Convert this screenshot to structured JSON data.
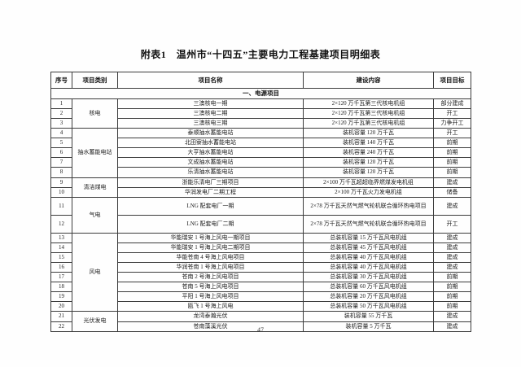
{
  "page": {
    "title": "附表1　温州市“十四五”主要电力工程基建项目明细表",
    "page_number": "47"
  },
  "table": {
    "headers": [
      "序号",
      "项目类别",
      "项目名称",
      "建设内容",
      "项目目标"
    ],
    "section_title": "一、电源项目",
    "rows": [
      {
        "no": "1",
        "category": "核电",
        "category_rowspan": 3,
        "name": "三澳核电一期",
        "content": "2×120 万千瓦第三代核电机组",
        "target": "部分建成"
      },
      {
        "no": "2",
        "name": "三澳核电二期",
        "content": "2×120 万千瓦第三代核电机组",
        "target": "开工"
      },
      {
        "no": "3",
        "name": "三澳核电三期",
        "content": "2×120 万千瓦第三代核电机组",
        "target": "力争开工"
      },
      {
        "no": "4",
        "category": "抽水蓄能电站",
        "category_rowspan": 5,
        "name": "泰顺抽水蓄能电站",
        "content": "装机容量 120 万千瓦",
        "target": "开工"
      },
      {
        "no": "5",
        "name": "北田寮抽水蓄能电站",
        "content": "装机容量 140 万千瓦",
        "target": "前期"
      },
      {
        "no": "6",
        "name": "大亨抽水蓄能电站",
        "content": "装机容量 240 万千瓦",
        "target": "前期"
      },
      {
        "no": "7",
        "name": "文成抽水蓄能电站",
        "content": "装机容量 120 万千瓦",
        "target": "前期"
      },
      {
        "no": "8",
        "name": "乐清抽水蓄能电站",
        "content": "装机容量 120 万千瓦",
        "target": "前期"
      },
      {
        "no": "9",
        "category": "清洁煤电",
        "category_rowspan": 2,
        "name": "浙能乐清电厂三期项目",
        "content": "2×100 万千瓦超超临界燃煤发电机组",
        "target": "建成"
      },
      {
        "no": "10",
        "name": "华润发电厂二期工程",
        "content": "2×100 万千瓦火力发电机组",
        "target": "储备"
      },
      {
        "no": "11",
        "category": "气电",
        "category_rowspan": 2,
        "name": "LNG 配套电厂一期",
        "content": "2×78 万千瓦天然气燃气轮机联合循环热电项目",
        "target": "建成",
        "tall": true
      },
      {
        "no": "12",
        "name": "LNG 配套电厂二期",
        "content": "2×78 万千瓦天然气燃气轮机联合循环热电项目",
        "target": "开工",
        "tall": true
      },
      {
        "no": "13",
        "category": "风电",
        "category_rowspan": 8,
        "name": "华能瑞安 1 号海上风电一期项目",
        "content": "总装机容量 15 万千瓦风电机组",
        "target": "建成"
      },
      {
        "no": "14",
        "name": "华能瑞安 1 号海上风电二期项目",
        "content": "总装机容量 45 万千瓦风电机组",
        "target": "建成"
      },
      {
        "no": "15",
        "name": "华能苍南 4 号海上风电项目",
        "content": "总装机容量 40 万千瓦风电机组",
        "target": "建成"
      },
      {
        "no": "16",
        "name": "华润苍南 1 号海上风电项目",
        "content": "总装机容量 40 万千瓦风电机组",
        "target": "建成"
      },
      {
        "no": "17",
        "name": "苍南 2 号海上风电项目",
        "content": "总装机容量 30 万千瓦风电机组",
        "target": "前期"
      },
      {
        "no": "18",
        "name": "苍南 5 号海上风电项目",
        "content": "总装机容量 60 万千瓦风电机组",
        "target": "前期"
      },
      {
        "no": "19",
        "name": "平阳 1 号海上风电项目",
        "content": "总装机容量 20 万千瓦风电机组",
        "target": "前期"
      },
      {
        "no": "20",
        "name": "瓯飞 1 号海上风电",
        "content": "总装机容量 50 万千瓦风电机组",
        "target": "前期"
      },
      {
        "no": "21",
        "category": "光伏发电",
        "category_rowspan": 2,
        "name": "龙湾泰瀚光伏",
        "content": "装机容量 55 万千瓦",
        "target": "建成"
      },
      {
        "no": "22",
        "name": "苍南藻溪光伏",
        "content": "装机容量 5 万千瓦",
        "target": "建成"
      }
    ]
  }
}
